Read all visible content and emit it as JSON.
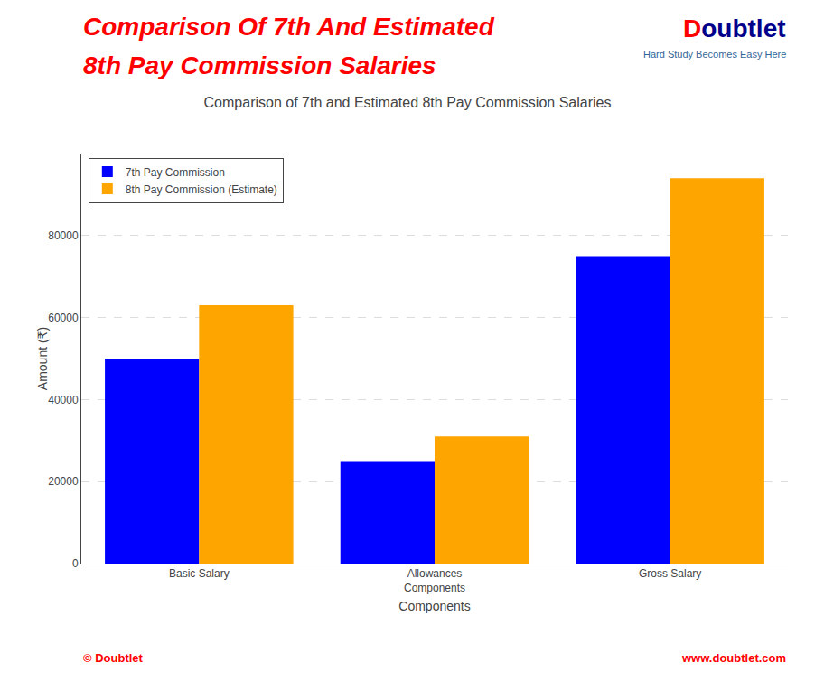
{
  "chart_data": {
    "type": "bar",
    "title": "Comparison of 7th and Estimated 8th Pay Commission Salaries",
    "xlabel": "Components",
    "ylabel": "Amount (₹)",
    "categories": [
      "Basic Salary",
      "Allowances\nComponents",
      "Gross Salary"
    ],
    "series": [
      {
        "name": "7th Pay Commission",
        "color": "#0000FF",
        "values": [
          50000,
          25000,
          75000
        ]
      },
      {
        "name": "8th Pay Commission (Estimate)",
        "color": "#FFA500",
        "values": [
          63000,
          31000,
          94000
        ]
      }
    ],
    "ylim": [
      0,
      100000
    ],
    "yticks": [
      0,
      20000,
      40000,
      60000,
      80000
    ],
    "grid": true,
    "legend": "upper left",
    "annotations": [
      {
        "text": "Comparison Of 7th And Estimated",
        "color": "#FF0000"
      },
      {
        "text": "8th Pay Commission Salaries",
        "color": "#FF0000"
      },
      {
        "text": "D",
        "color": "#FF0000"
      },
      {
        "text": "oubtlet",
        "color": "#00008B"
      },
      {
        "text": "Hard Study Becomes Easy Here",
        "color": "#336699"
      },
      {
        "text": "© Doubtlet",
        "color": "#FF0000"
      },
      {
        "text": "www.doubtlet.com",
        "color": "#FF0000"
      }
    ]
  }
}
